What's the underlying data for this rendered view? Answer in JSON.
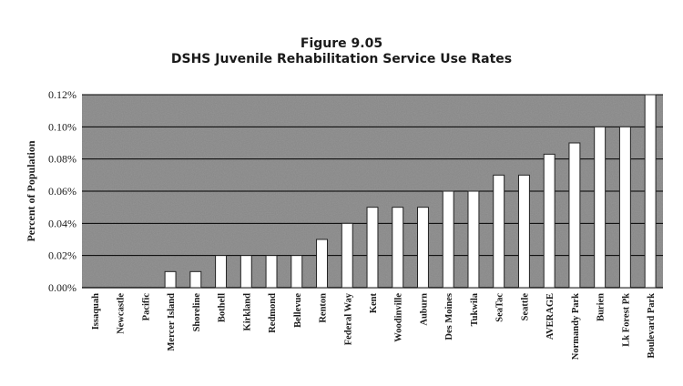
{
  "chart_data": {
    "type": "bar",
    "title": "Figure 9.05",
    "subtitle": "DSHS Juvenile Rehabilitation Service Use Rates",
    "xlabel": "",
    "ylabel": "Percent of Population",
    "ylim": [
      0,
      0.12
    ],
    "yticks": [
      "0.00%",
      "0.02%",
      "0.04%",
      "0.06%",
      "0.08%",
      "0.10%",
      "0.12%"
    ],
    "grid": true,
    "legend": "none",
    "categories": [
      "Issaquah",
      "Newcastle",
      "Pacific",
      "Mercer Island",
      "Shoreline",
      "Bothell",
      "Kirkland",
      "Redmond",
      "Bellevue",
      "Renton",
      "Federal Way",
      "Kent",
      "Woodinville",
      "Auburn",
      "Des Moines",
      "Tukwila",
      "SeaTac",
      "Seattle",
      "AVERAGE",
      "Normandy Park",
      "Burien",
      "Lk Forest Pk",
      "Boulevard Park"
    ],
    "values": [
      0.0,
      0.0,
      0.0,
      0.01,
      0.01,
      0.02,
      0.02,
      0.02,
      0.02,
      0.03,
      0.04,
      0.05,
      0.05,
      0.05,
      0.06,
      0.06,
      0.07,
      0.07,
      0.083,
      0.09,
      0.1,
      0.1,
      0.12
    ],
    "colors": {
      "plot_background": "#8a8a8a",
      "bar_fill": "#ffffff",
      "bar_stroke": "#222222",
      "grid": "#000000"
    }
  }
}
